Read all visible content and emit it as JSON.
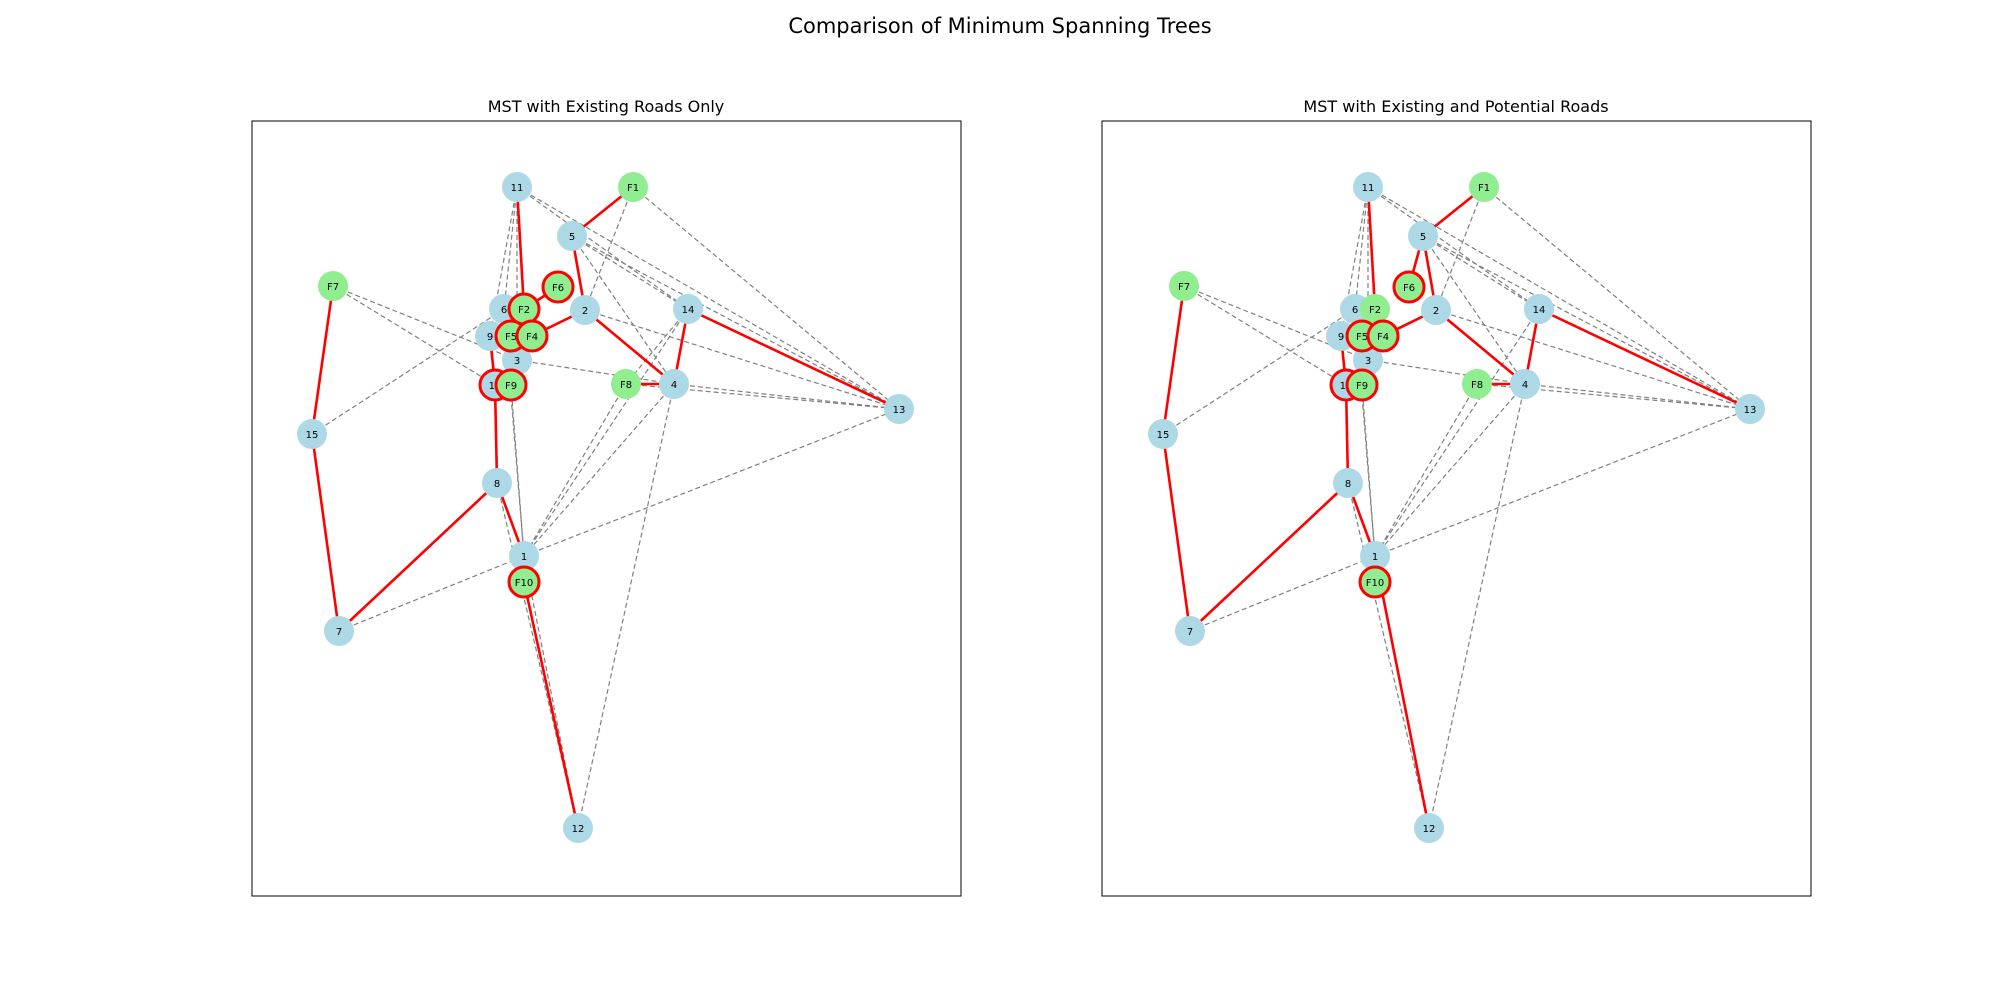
{
  "figure_title": "Comparison of Minimum Spanning Trees",
  "colors": {
    "community_node": "#add8e6",
    "facility_node": "#90ee90",
    "mst_edge": "#ff0000",
    "road_edge": "#808080",
    "highlight_ring": "#ff0000",
    "frame": "#000000"
  },
  "panels": [
    {
      "title": "MST with Existing Roads Only",
      "highlighted": [
        "F2",
        "F4",
        "F5",
        "F6",
        "F9",
        "F10",
        "10"
      ],
      "dashed_edges": [
        [
          "11",
          "6"
        ],
        [
          "11",
          "9"
        ],
        [
          "11",
          "3"
        ],
        [
          "11",
          "13"
        ],
        [
          "11",
          "14"
        ],
        [
          "5",
          "14"
        ],
        [
          "5",
          "13"
        ],
        [
          "5",
          "4"
        ],
        [
          "F1",
          "2"
        ],
        [
          "F1",
          "13"
        ],
        [
          "F7",
          "3"
        ],
        [
          "F7",
          "10"
        ],
        [
          "15",
          "6"
        ],
        [
          "2",
          "13"
        ],
        [
          "3",
          "4"
        ],
        [
          "8",
          "12"
        ],
        [
          "1",
          "12"
        ],
        [
          "4",
          "12"
        ],
        [
          "4",
          "13"
        ],
        [
          "F8",
          "13"
        ],
        [
          "F8",
          "1"
        ],
        [
          "14",
          "1"
        ],
        [
          "4",
          "1"
        ],
        [
          "14",
          "F8"
        ],
        [
          "7",
          "1"
        ],
        [
          "1",
          "13"
        ],
        [
          "6",
          "1"
        ],
        [
          "F9",
          "1"
        ]
      ],
      "mst_edges": [
        [
          "11",
          "F2"
        ],
        [
          "F1",
          "5"
        ],
        [
          "5",
          "2"
        ],
        [
          "2",
          "F4"
        ],
        [
          "2",
          "4"
        ],
        [
          "4",
          "14"
        ],
        [
          "14",
          "13"
        ],
        [
          "F8",
          "4"
        ],
        [
          "F6",
          "F2"
        ],
        [
          "F5",
          "F4"
        ],
        [
          "9",
          "10"
        ],
        [
          "10",
          "8"
        ],
        [
          "8",
          "1"
        ],
        [
          "8",
          "7"
        ],
        [
          "7",
          "15"
        ],
        [
          "15",
          "F7"
        ],
        [
          "F10",
          "12"
        ]
      ]
    },
    {
      "title": "MST with Existing and Potential Roads",
      "highlighted": [
        "F4",
        "F5",
        "F6",
        "F9",
        "F10",
        "10"
      ],
      "dashed_edges": [
        [
          "11",
          "6"
        ],
        [
          "11",
          "9"
        ],
        [
          "11",
          "3"
        ],
        [
          "11",
          "13"
        ],
        [
          "11",
          "14"
        ],
        [
          "5",
          "14"
        ],
        [
          "5",
          "13"
        ],
        [
          "5",
          "4"
        ],
        [
          "F1",
          "2"
        ],
        [
          "F1",
          "13"
        ],
        [
          "F7",
          "3"
        ],
        [
          "F7",
          "10"
        ],
        [
          "15",
          "6"
        ],
        [
          "2",
          "13"
        ],
        [
          "3",
          "4"
        ],
        [
          "8",
          "12"
        ],
        [
          "1",
          "12"
        ],
        [
          "4",
          "12"
        ],
        [
          "4",
          "13"
        ],
        [
          "F8",
          "13"
        ],
        [
          "F8",
          "1"
        ],
        [
          "14",
          "1"
        ],
        [
          "4",
          "1"
        ],
        [
          "7",
          "1"
        ],
        [
          "1",
          "13"
        ],
        [
          "6",
          "1"
        ],
        [
          "F9",
          "1"
        ]
      ],
      "mst_edges": [
        [
          "11",
          "F2"
        ],
        [
          "F1",
          "5"
        ],
        [
          "5",
          "2"
        ],
        [
          "2",
          "F4"
        ],
        [
          "2",
          "4"
        ],
        [
          "4",
          "14"
        ],
        [
          "14",
          "13"
        ],
        [
          "F8",
          "4"
        ],
        [
          "F6",
          "5"
        ],
        [
          "F5",
          "F4"
        ],
        [
          "9",
          "10"
        ],
        [
          "10",
          "8"
        ],
        [
          "8",
          "1"
        ],
        [
          "8",
          "7"
        ],
        [
          "7",
          "15"
        ],
        [
          "15",
          "F7"
        ],
        [
          "1",
          "12"
        ]
      ]
    }
  ],
  "nodes": [
    {
      "id": "11",
      "label": "11",
      "kind": "community"
    },
    {
      "id": "5",
      "label": "5",
      "kind": "community"
    },
    {
      "id": "6",
      "label": "6",
      "kind": "community"
    },
    {
      "id": "2",
      "label": "2",
      "kind": "community"
    },
    {
      "id": "14",
      "label": "14",
      "kind": "community"
    },
    {
      "id": "9",
      "label": "9",
      "kind": "community"
    },
    {
      "id": "3",
      "label": "3",
      "kind": "community"
    },
    {
      "id": "10",
      "label": "10",
      "kind": "community"
    },
    {
      "id": "4",
      "label": "4",
      "kind": "community"
    },
    {
      "id": "13",
      "label": "13",
      "kind": "community"
    },
    {
      "id": "15",
      "label": "15",
      "kind": "community"
    },
    {
      "id": "8",
      "label": "8",
      "kind": "community"
    },
    {
      "id": "1",
      "label": "1",
      "kind": "community"
    },
    {
      "id": "7",
      "label": "7",
      "kind": "community"
    },
    {
      "id": "12",
      "label": "12",
      "kind": "community"
    },
    {
      "id": "F1",
      "label": "F1",
      "kind": "facility"
    },
    {
      "id": "F7",
      "label": "F7",
      "kind": "facility"
    },
    {
      "id": "F6",
      "label": "F6",
      "kind": "facility"
    },
    {
      "id": "F2",
      "label": "F2",
      "kind": "facility"
    },
    {
      "id": "F5",
      "label": "F5",
      "kind": "facility"
    },
    {
      "id": "F4",
      "label": "F4",
      "kind": "facility"
    },
    {
      "id": "F9",
      "label": "F9",
      "kind": "facility"
    },
    {
      "id": "F8",
      "label": "F8",
      "kind": "facility"
    },
    {
      "id": "F10",
      "label": "F10",
      "kind": "facility"
    }
  ]
}
